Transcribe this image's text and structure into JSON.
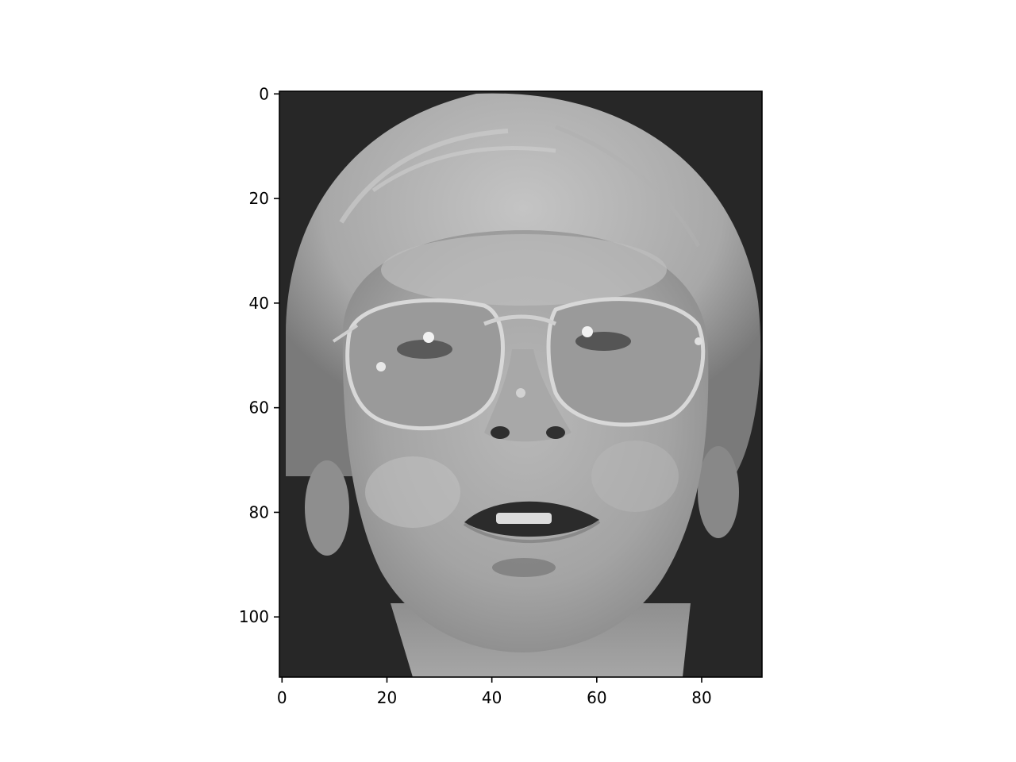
{
  "chart_data": {
    "type": "heatmap",
    "title": "",
    "xlabel": "",
    "ylabel": "",
    "colormap": "gray",
    "image_shape": [
      112,
      92
    ],
    "xlim": [
      -0.5,
      91.5
    ],
    "ylim": [
      111.5,
      -0.5
    ],
    "x_ticks": [
      0,
      20,
      40,
      60,
      80
    ],
    "y_ticks": [
      0,
      20,
      40,
      60,
      80,
      100
    ],
    "x_tick_labels": [
      "0",
      "20",
      "40",
      "60",
      "80"
    ],
    "y_tick_labels": [
      "0",
      "20",
      "40",
      "60",
      "80",
      "100"
    ],
    "grid": false,
    "legend": "none",
    "content": "grayscale face photograph of a young man with light hair and large glasses, mouth slightly open, on a dark background"
  }
}
